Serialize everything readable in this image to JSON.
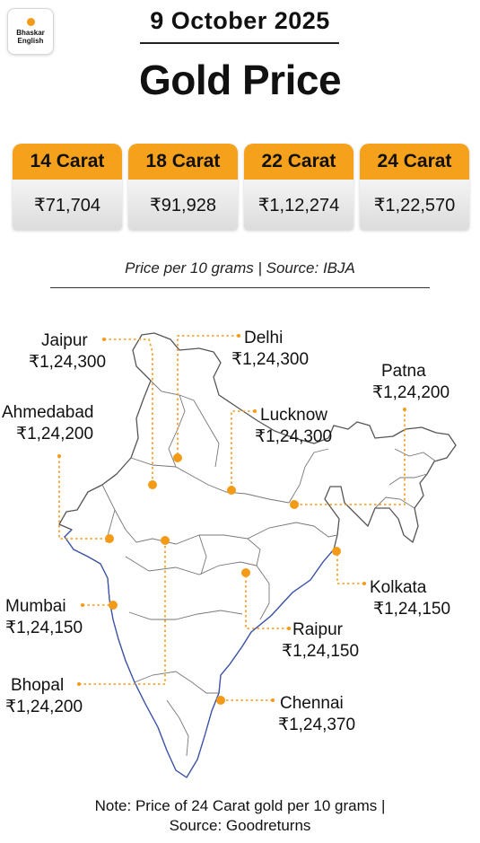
{
  "brand": {
    "line1": "Bhaskar",
    "line2": "English",
    "accent": "#f39a17"
  },
  "date": "9 October 2025",
  "title": "Gold Price",
  "cards": [
    {
      "label": "14 Carat",
      "price": "₹71,704"
    },
    {
      "label": "18 Carat",
      "price": "₹91,928"
    },
    {
      "label": "22 Carat",
      "price": "₹1,12,274"
    },
    {
      "label": "24 Carat",
      "price": "₹1,22,570"
    }
  ],
  "caption": "Price per 10 grams | Source: IBJA",
  "cities": {
    "jaipur": {
      "name": "Jaipur",
      "price": "₹1,24,300"
    },
    "delhi": {
      "name": "Delhi",
      "price": "₹1,24,300"
    },
    "patna": {
      "name": "Patna",
      "price": "₹1,24,200"
    },
    "ahmedabad": {
      "name": "Ahmedabad",
      "price": "₹1,24,200"
    },
    "lucknow": {
      "name": "Lucknow",
      "price": "₹1,24,300"
    },
    "kolkata": {
      "name": "Kolkata",
      "price": "₹1,24,150"
    },
    "mumbai": {
      "name": "Mumbai",
      "price": "₹1,24,150"
    },
    "raipur": {
      "name": "Raipur",
      "price": "₹1,24,150"
    },
    "bhopal": {
      "name": "Bhopal",
      "price": "₹1,24,200"
    },
    "chennai": {
      "name": "Chennai",
      "price": "₹1,24,370"
    }
  },
  "note": {
    "line1": "Note: Price of 24 Carat gold per 10 grams |",
    "line2": "Source: Goodreturns"
  },
  "colors": {
    "accent": "#f5a11c",
    "map_outline": "#555555",
    "coast": "#3a55b5",
    "leader": "#f39a17"
  }
}
